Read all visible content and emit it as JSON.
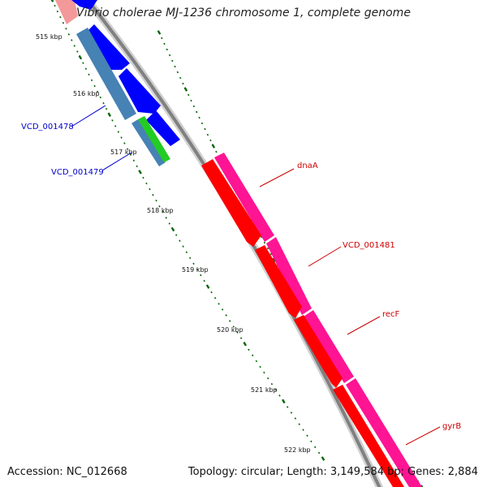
{
  "title": "Vibrio cholerae MJ-1236 chromosome 1, complete genome",
  "footer": {
    "accession": "Accession: NC_012668",
    "summary": "Topology: circular; Length: 3,149,584 bp; Genes: 2,884"
  },
  "colors": {
    "backbone": "#808080",
    "reverse_cds": "#0000ff",
    "reverse_gene": "#4682b4",
    "forward_cds": "#ff0000",
    "forward_gene": "#ff1493",
    "misc_green": "#22cc22",
    "ticks": "#006400",
    "reverse_label": "#0000cc",
    "forward_label": "#cc0000"
  },
  "tick_labels": [
    "515 kbp",
    "516 kbp",
    "517 kbp",
    "518 kbp",
    "519 kbp",
    "520 kbp",
    "521 kbp",
    "522 kbp"
  ],
  "gene_labels": [
    {
      "text": "VCD_001478",
      "strand": "reverse"
    },
    {
      "text": "VCD_001479",
      "strand": "reverse"
    },
    {
      "text": "dnaA",
      "strand": "forward"
    },
    {
      "text": "VCD_001481",
      "strand": "forward"
    },
    {
      "text": "recF",
      "strand": "forward"
    },
    {
      "text": "gyrB",
      "strand": "forward"
    }
  ]
}
